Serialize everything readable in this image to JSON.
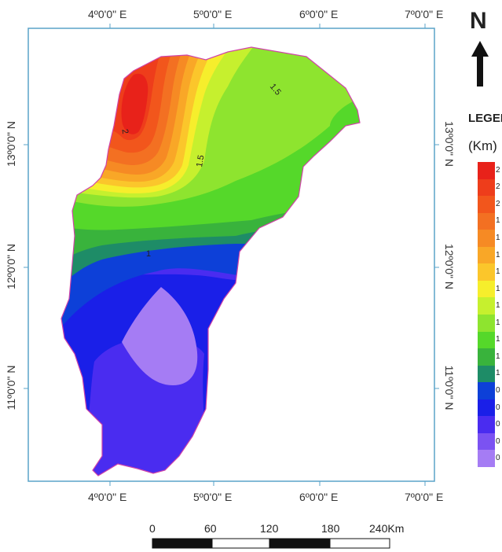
{
  "map": {
    "top_lon_labels": [
      "4º0'0\" E",
      "5º0'0\" E",
      "6º0'0\" E",
      "7º0'0\" E"
    ],
    "bottom_lon_labels": [
      "4º0'0\" E",
      "5º0'0\" E",
      "6º0'0\" E",
      "7º0'0\" E"
    ],
    "left_lat_labels": [
      "13º0'0\" N",
      "12º0'0\" N",
      "11º0'0\" N"
    ],
    "right_lat_labels": [
      "13º0'0\" N",
      "12º0'0\" N",
      "11º0'0\" N"
    ],
    "contour_labels": [
      "2",
      "1.5",
      "1.5",
      "1"
    ]
  },
  "north": {
    "label": "N"
  },
  "legend": {
    "title": "LEGEND",
    "unit": "(Km)",
    "entries": [
      {
        "label": "2",
        "color": "#e8221a"
      },
      {
        "label": "2",
        "color": "#ee3d1b"
      },
      {
        "label": "2",
        "color": "#f2561c"
      },
      {
        "label": "1",
        "color": "#f37022"
      },
      {
        "label": "1",
        "color": "#f68a24"
      },
      {
        "label": "1",
        "color": "#f9a727"
      },
      {
        "label": "1",
        "color": "#fbc62b"
      },
      {
        "label": "1",
        "color": "#f6ee2c"
      },
      {
        "label": "1",
        "color": "#c6f02e"
      },
      {
        "label": "1",
        "color": "#8ee42f"
      },
      {
        "label": "1",
        "color": "#55d82a"
      },
      {
        "label": "1",
        "color": "#39b33c"
      },
      {
        "label": "1",
        "color": "#1e8c67"
      },
      {
        "label": "0",
        "color": "#0d40d8"
      },
      {
        "label": "0",
        "color": "#1a1fe8"
      },
      {
        "label": "0",
        "color": "#4a2cf0"
      },
      {
        "label": "0",
        "color": "#7b52f2"
      },
      {
        "label": "0",
        "color": "#a57cf4"
      }
    ]
  },
  "scale_bar": {
    "labels": [
      "0",
      "60",
      "120",
      "180",
      "240Km"
    ]
  }
}
